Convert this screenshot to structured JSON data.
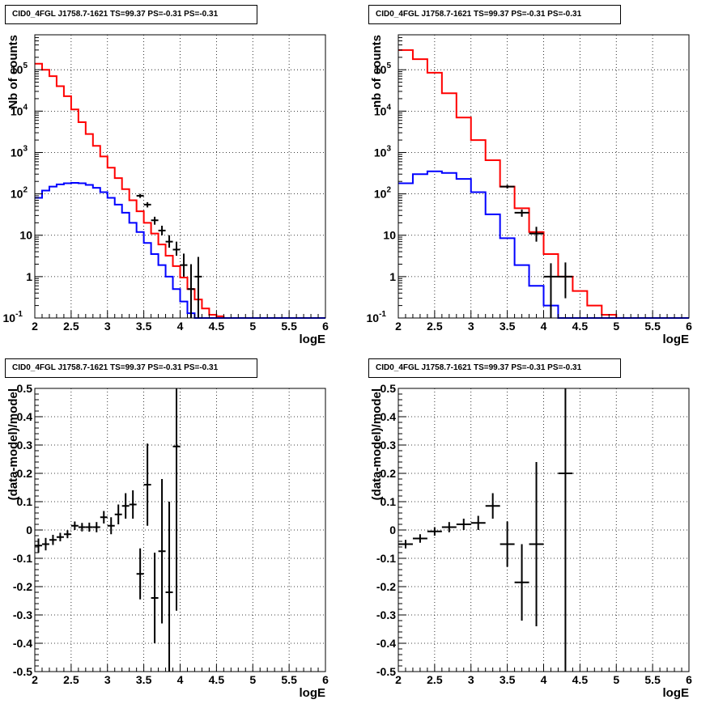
{
  "chart_data": [
    {
      "type": "histogram",
      "title": "CID0_4FGL J1758.7-1621 TS=99.37 PS=-0.31 PS=-0.31",
      "xlabel": "logE",
      "ylabel": "Nb of counts",
      "xlim": [
        2,
        6
      ],
      "ylim": [
        0.1,
        700000
      ],
      "log_y": true,
      "grid": true,
      "x_ticks": [
        "2",
        "2.5",
        "3",
        "3.5",
        "4",
        "4.5",
        "5",
        "5.5",
        "6"
      ],
      "y_ticks": [
        {
          "value": 0.1,
          "label": "10",
          "sup": "-1"
        },
        {
          "value": 1,
          "label": "1",
          "sup": ""
        },
        {
          "value": 10,
          "label": "10",
          "sup": ""
        },
        {
          "value": 100,
          "label": "10",
          "sup": "2"
        },
        {
          "value": 1000,
          "label": "10",
          "sup": "3"
        },
        {
          "value": 10000,
          "label": "10",
          "sup": "4"
        },
        {
          "value": 100000,
          "label": "10",
          "sup": "5"
        }
      ],
      "series": [
        {
          "color": "#ff0000",
          "bin_width": 0.1,
          "x": [
            2.0,
            2.1,
            2.2,
            2.3,
            2.4,
            2.5,
            2.6,
            2.7,
            2.8,
            2.9,
            3.0,
            3.1,
            3.2,
            3.3,
            3.4,
            3.5,
            3.6,
            3.7,
            3.8,
            3.9,
            4.0,
            4.1,
            4.2,
            4.3,
            4.4,
            4.5,
            4.6,
            4.7,
            4.8,
            4.9,
            5.0,
            5.1,
            5.2,
            5.3,
            5.4,
            5.5,
            5.6,
            5.7,
            5.8,
            5.9
          ],
          "values": [
            140000,
            100000,
            70000,
            40000,
            23000,
            11000,
            5400,
            2800,
            1450,
            800,
            430,
            240,
            130,
            70,
            38,
            20,
            11,
            6,
            3.2,
            1.8,
            0.95,
            0.5,
            0.28,
            0.17,
            0.12,
            0.11,
            0.1,
            0.1,
            0.1,
            0.1,
            0.1,
            0.1,
            0.1,
            0.1,
            0.1,
            0.1,
            0.1,
            0.1,
            0.1,
            0.1
          ]
        },
        {
          "color": "#0000ff",
          "bin_width": 0.1,
          "x": [
            2.0,
            2.1,
            2.2,
            2.3,
            2.4,
            2.5,
            2.6,
            2.7,
            2.8,
            2.9,
            3.0,
            3.1,
            3.2,
            3.3,
            3.4,
            3.5,
            3.6,
            3.7,
            3.8,
            3.9,
            4.0,
            4.1,
            4.2,
            4.3,
            4.4,
            4.5,
            4.6,
            4.7,
            4.8,
            4.9,
            5.0,
            5.1,
            5.2,
            5.3,
            5.4,
            5.5,
            5.6,
            5.7,
            5.8,
            5.9
          ],
          "values": [
            80,
            120,
            150,
            170,
            180,
            185,
            180,
            165,
            140,
            110,
            80,
            55,
            35,
            20,
            12,
            6.5,
            3.5,
            1.9,
            1.0,
            0.5,
            0.25,
            0.13,
            0.1,
            0.1,
            0.1,
            0.1,
            0.1,
            0.1,
            0.1,
            0.1,
            0.1,
            0.1,
            0.1,
            0.1,
            0.1,
            0.1,
            0.1,
            0.1,
            0.1,
            0.1
          ]
        }
      ],
      "points": {
        "x": [
          3.45,
          3.55,
          3.65,
          3.75,
          3.85,
          3.95,
          4.05,
          4.15,
          4.25
        ],
        "y": [
          90,
          55,
          23,
          13,
          7,
          4.5,
          1.9,
          0.5,
          1.0
        ],
        "yerr_low": [
          80,
          47,
          18,
          10,
          5,
          3.2,
          1.0,
          0.1,
          0.1
        ],
        "yerr_high": [
          100,
          63,
          28,
          17,
          10,
          7,
          3.6,
          2.0,
          3.0
        ]
      }
    },
    {
      "type": "histogram",
      "title": "CID0_4FGL J1758.7-1621 TS=99.37 PS=-0.31 PS=-0.31",
      "xlabel": "logE",
      "ylabel": "nb of counts",
      "xlim": [
        2,
        6
      ],
      "ylim": [
        0.1,
        700000
      ],
      "log_y": true,
      "grid": true,
      "x_ticks": [
        "2",
        "2.5",
        "3",
        "3.5",
        "4",
        "4.5",
        "5",
        "5.5",
        "6"
      ],
      "y_ticks": [
        {
          "value": 0.1,
          "label": "10",
          "sup": "-1"
        },
        {
          "value": 1,
          "label": "1",
          "sup": ""
        },
        {
          "value": 10,
          "label": "10",
          "sup": ""
        },
        {
          "value": 100,
          "label": "10",
          "sup": "2"
        },
        {
          "value": 1000,
          "label": "10",
          "sup": "3"
        },
        {
          "value": 10000,
          "label": "10",
          "sup": "4"
        },
        {
          "value": 100000,
          "label": "10",
          "sup": "5"
        }
      ],
      "series": [
        {
          "color": "#ff0000",
          "bin_width": 0.2,
          "x": [
            2.0,
            2.2,
            2.4,
            2.6,
            2.8,
            3.0,
            3.2,
            3.4,
            3.6,
            3.8,
            4.0,
            4.2,
            4.4,
            4.6,
            4.8,
            5.0,
            5.2,
            5.4,
            5.6,
            5.8
          ],
          "values": [
            300000,
            180000,
            85000,
            27000,
            7000,
            2000,
            650,
            150,
            45,
            12,
            3.5,
            1.0,
            0.45,
            0.2,
            0.12,
            0.1,
            0.1,
            0.1,
            0.1,
            0.1
          ]
        },
        {
          "color": "#0000ff",
          "bin_width": 0.2,
          "x": [
            2.0,
            2.2,
            2.4,
            2.6,
            2.8,
            3.0,
            3.2,
            3.4,
            3.6,
            3.8,
            4.0,
            4.2,
            4.4,
            4.6,
            4.8,
            5.0,
            5.2,
            5.4,
            5.6,
            5.8
          ],
          "values": [
            180,
            300,
            350,
            320,
            230,
            110,
            32,
            8.5,
            1.9,
            0.6,
            0.2,
            0.1,
            0.1,
            0.1,
            0.1,
            0.1,
            0.1,
            0.1,
            0.1,
            0.1
          ]
        }
      ],
      "points": {
        "x": [
          3.5,
          3.7,
          3.9,
          4.1,
          4.3
        ],
        "y": [
          150,
          35,
          11,
          1.0,
          1.0
        ],
        "yerr_low": [
          135,
          28,
          7,
          0.1,
          0.3
        ],
        "yerr_high": [
          165,
          42,
          16,
          2.1,
          2.2
        ]
      }
    },
    {
      "type": "scatter",
      "title": "CID0_4FGL J1758.7-1621 TS=99.37 PS=-0.31 PS=-0.31",
      "xlabel": "logE",
      "ylabel": "(data-model)/model",
      "xlim": [
        2,
        6
      ],
      "ylim": [
        -0.5,
        0.5
      ],
      "log_y": false,
      "grid": true,
      "x_ticks": [
        "2",
        "2.5",
        "3",
        "3.5",
        "4",
        "4.5",
        "5",
        "5.5",
        "6"
      ],
      "y_ticks": [
        {
          "value": -0.5,
          "label": "-0.5"
        },
        {
          "value": -0.4,
          "label": "-0.4"
        },
        {
          "value": -0.3,
          "label": "-0.3"
        },
        {
          "value": -0.2,
          "label": "-0.2"
        },
        {
          "value": -0.1,
          "label": "-0.1"
        },
        {
          "value": 0,
          "label": "0"
        },
        {
          "value": 0.1,
          "label": "0.1"
        },
        {
          "value": 0.2,
          "label": "0.2"
        },
        {
          "value": 0.3,
          "label": "0.3"
        },
        {
          "value": 0.4,
          "label": "0.4"
        },
        {
          "value": 0.5,
          "label": "0.5"
        }
      ],
      "points": {
        "x_halfwidth": 0.05,
        "x": [
          2.05,
          2.15,
          2.25,
          2.35,
          2.45,
          2.55,
          2.65,
          2.75,
          2.85,
          2.95,
          3.05,
          3.15,
          3.25,
          3.35,
          3.45,
          3.55,
          3.65,
          3.75,
          3.85,
          3.95
        ],
        "y": [
          -0.055,
          -0.05,
          -0.035,
          -0.025,
          -0.015,
          0.015,
          0.01,
          0.01,
          0.01,
          0.045,
          0.015,
          0.055,
          0.085,
          0.09,
          -0.155,
          0.16,
          -0.24,
          -0.075,
          -0.22,
          0.295
        ],
        "yerr": [
          0.025,
          0.022,
          0.018,
          0.015,
          0.014,
          0.015,
          0.015,
          0.016,
          0.018,
          0.022,
          0.03,
          0.035,
          0.045,
          0.05,
          0.09,
          0.145,
          0.16,
          0.255,
          0.32,
          0.58
        ]
      }
    },
    {
      "type": "scatter",
      "title": "CID0_4FGL J1758.7-1621 TS=99.37 PS=-0.31 PS=-0.31",
      "xlabel": "logE",
      "ylabel": "(data-model)/model",
      "xlim": [
        2,
        6
      ],
      "ylim": [
        -0.5,
        0.5
      ],
      "log_y": false,
      "grid": true,
      "x_ticks": [
        "2",
        "2.5",
        "3",
        "3.5",
        "4",
        "4.5",
        "5",
        "5.5",
        "6"
      ],
      "y_ticks": [
        {
          "value": -0.5,
          "label": "-0.5"
        },
        {
          "value": -0.4,
          "label": "-0.4"
        },
        {
          "value": -0.3,
          "label": "-0.3"
        },
        {
          "value": -0.2,
          "label": "-0.2"
        },
        {
          "value": -0.1,
          "label": "-0.1"
        },
        {
          "value": 0,
          "label": "0"
        },
        {
          "value": 0.1,
          "label": "0.1"
        },
        {
          "value": 0.2,
          "label": "0.2"
        },
        {
          "value": 0.3,
          "label": "0.3"
        },
        {
          "value": 0.4,
          "label": "0.4"
        },
        {
          "value": 0.5,
          "label": "0.5"
        }
      ],
      "points": {
        "x_halfwidth": 0.1,
        "x": [
          2.1,
          2.3,
          2.5,
          2.7,
          2.9,
          3.1,
          3.3,
          3.5,
          3.7,
          3.9,
          4.3
        ],
        "y": [
          -0.05,
          -0.03,
          -0.005,
          0.01,
          0.02,
          0.025,
          0.085,
          -0.05,
          -0.185,
          -0.05,
          0.2
        ],
        "yerr": [
          0.015,
          0.015,
          0.015,
          0.018,
          0.02,
          0.025,
          0.045,
          0.08,
          0.135,
          0.29,
          0.95
        ]
      }
    }
  ]
}
